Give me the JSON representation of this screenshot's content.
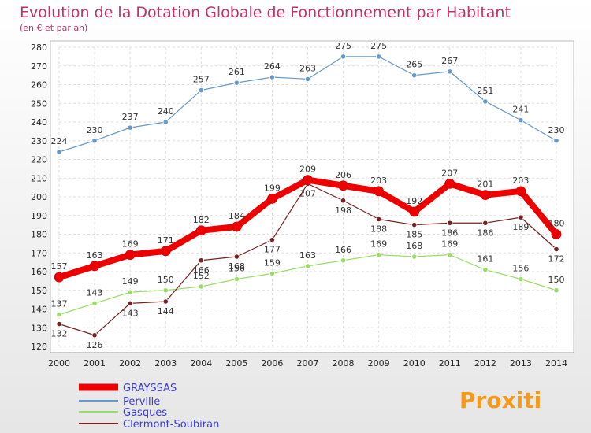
{
  "chart_data": {
    "type": "line",
    "title": "Evolution de la Dotation Globale de Fonctionnement par Habitant",
    "subtitle": "(en € et par an)",
    "x": [
      "2000",
      "2001",
      "2002",
      "2003",
      "2004",
      "2005",
      "2006",
      "2007",
      "2008",
      "2009",
      "2010",
      "2011",
      "2012",
      "2013",
      "2014"
    ],
    "ylim": [
      120,
      280
    ],
    "yticks": [
      120,
      130,
      140,
      150,
      160,
      170,
      180,
      190,
      200,
      210,
      220,
      230,
      240,
      250,
      260,
      270,
      280
    ],
    "grid": true,
    "legend_position": "bottom-left",
    "series": [
      {
        "name": "GRAYSSAS",
        "color": "#ee0000",
        "values": [
          157,
          163,
          169,
          171,
          182,
          184,
          199,
          209,
          206,
          203,
          192,
          207,
          201,
          203,
          180
        ]
      },
      {
        "name": "Perville",
        "color": "#6699cc",
        "values": [
          224,
          230,
          237,
          240,
          257,
          261,
          264,
          263,
          275,
          275,
          265,
          267,
          251,
          241,
          230
        ]
      },
      {
        "name": "Gasques",
        "color": "#99dd66",
        "values": [
          137,
          143,
          149,
          150,
          152,
          156,
          159,
          163,
          166,
          169,
          168,
          169,
          161,
          156,
          150
        ]
      },
      {
        "name": "Clermont-Soubiran",
        "color": "#772222",
        "values": [
          132,
          126,
          143,
          144,
          166,
          168,
          177,
          207,
          198,
          188,
          185,
          186,
          186,
          189,
          172
        ]
      }
    ]
  },
  "logo": {
    "text": "Proxiti"
  }
}
